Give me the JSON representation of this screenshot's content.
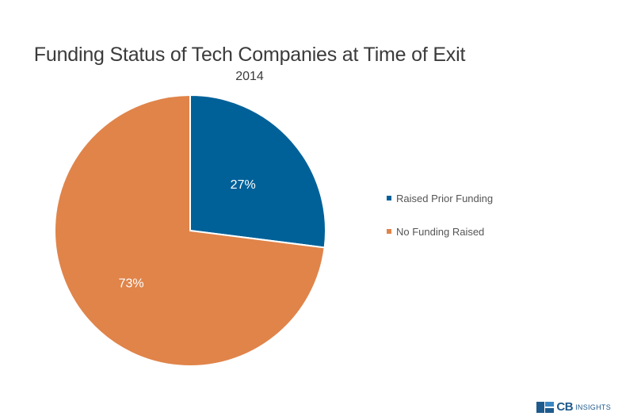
{
  "chart_data": {
    "type": "pie",
    "title": "Funding Status of Tech Companies at Time of Exit",
    "subtitle": "2014",
    "categories": [
      "Raised Prior Funding",
      "No Funding Raised"
    ],
    "values": [
      27,
      73
    ],
    "labels": [
      "27%",
      "73%"
    ],
    "colors": [
      "#006199",
      "#e0844a"
    ],
    "legend_position": "right"
  },
  "brand": {
    "logo_strong": "CB",
    "logo_light": "INSIGHTS"
  }
}
